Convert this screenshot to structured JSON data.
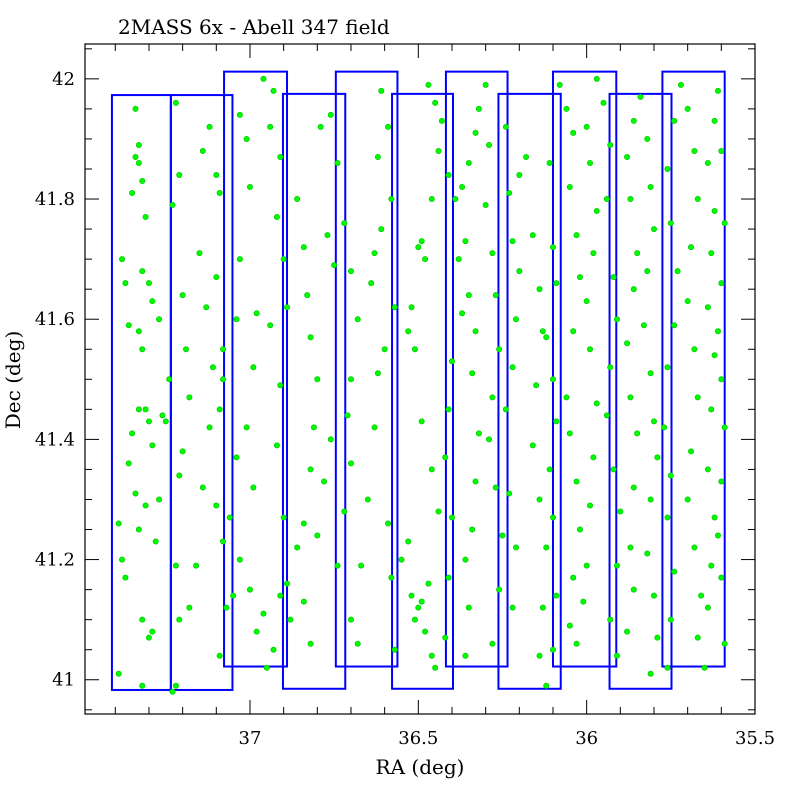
{
  "chart_data": {
    "type": "scatter",
    "title": "2MASS 6x - Abell 347 field",
    "xlabel": "RA (deg)",
    "ylabel": "Dec (deg)",
    "xlim": [
      37.49,
      35.5
    ],
    "ylim": [
      40.943,
      42.058
    ],
    "x_reversed": true,
    "grid": false,
    "x_ticks": [
      37,
      36.5,
      36,
      35.5
    ],
    "x_tick_labels": [
      "37",
      "36.5",
      "36",
      "35.5"
    ],
    "y_ticks": [
      41,
      41.2,
      41.4,
      41.6,
      41.8,
      42
    ],
    "y_tick_labels": [
      "41",
      "41.2",
      "41.4",
      "41.6",
      "41.8",
      "42"
    ],
    "colors": {
      "fields": "#0000ff",
      "sources": "#00ff00",
      "axes": "#000000"
    },
    "fields": [
      {
        "ra_min": 37.235,
        "ra_max": 37.41,
        "dec_min": 40.983,
        "dec_max": 41.973
      },
      {
        "ra_min": 37.052,
        "ra_max": 37.235,
        "dec_min": 40.983,
        "dec_max": 41.973
      },
      {
        "ra_min": 36.89,
        "ra_max": 37.077,
        "dec_min": 41.022,
        "dec_max": 42.012
      },
      {
        "ra_min": 36.717,
        "ra_max": 36.902,
        "dec_min": 40.985,
        "dec_max": 41.975
      },
      {
        "ra_min": 36.562,
        "ra_max": 36.745,
        "dec_min": 41.022,
        "dec_max": 42.012
      },
      {
        "ra_min": 36.397,
        "ra_max": 36.578,
        "dec_min": 40.985,
        "dec_max": 41.975
      },
      {
        "ra_min": 36.235,
        "ra_max": 36.418,
        "dec_min": 41.022,
        "dec_max": 42.012
      },
      {
        "ra_min": 36.077,
        "ra_max": 36.262,
        "dec_min": 40.985,
        "dec_max": 41.975
      },
      {
        "ra_min": 35.912,
        "ra_max": 36.1,
        "dec_min": 41.022,
        "dec_max": 42.012
      },
      {
        "ra_min": 35.748,
        "ra_max": 35.932,
        "dec_min": 40.985,
        "dec_max": 41.975
      },
      {
        "ra_min": 35.59,
        "ra_max": 35.775,
        "dec_min": 41.022,
        "dec_max": 42.012
      }
    ],
    "points": [
      [
        37.39,
        41.01
      ],
      [
        37.39,
        41.26
      ],
      [
        37.38,
        41.2
      ],
      [
        37.37,
        41.17
      ],
      [
        37.38,
        41.7
      ],
      [
        37.37,
        41.66
      ],
      [
        37.36,
        41.59
      ],
      [
        37.35,
        41.81
      ],
      [
        37.34,
        41.87
      ],
      [
        37.33,
        41.89
      ],
      [
        37.34,
        41.95
      ],
      [
        37.33,
        41.86
      ],
      [
        37.32,
        41.83
      ],
      [
        37.31,
        41.77
      ],
      [
        37.32,
        41.68
      ],
      [
        37.33,
        41.58
      ],
      [
        37.32,
        41.55
      ],
      [
        37.31,
        41.45
      ],
      [
        37.3,
        41.43
      ],
      [
        37.29,
        41.39
      ],
      [
        37.35,
        41.41
      ],
      [
        37.36,
        41.36
      ],
      [
        37.34,
        41.31
      ],
      [
        37.33,
        41.25
      ],
      [
        37.31,
        41.29
      ],
      [
        37.3,
        41.66
      ],
      [
        37.29,
        41.63
      ],
      [
        37.27,
        41.6
      ],
      [
        37.26,
        41.44
      ],
      [
        37.27,
        41.3
      ],
      [
        37.28,
        41.23
      ],
      [
        37.29,
        41.08
      ],
      [
        37.3,
        41.07
      ],
      [
        37.32,
        41.1
      ],
      [
        37.32,
        40.99
      ],
      [
        37.33,
        41.45
      ],
      [
        37.25,
        41.43
      ],
      [
        37.24,
        41.5
      ],
      [
        37.23,
        41.79
      ],
      [
        37.22,
        41.96
      ],
      [
        37.21,
        41.84
      ],
      [
        37.2,
        41.64
      ],
      [
        37.19,
        41.55
      ],
      [
        37.18,
        41.47
      ],
      [
        37.2,
        41.38
      ],
      [
        37.21,
        41.34
      ],
      [
        37.22,
        41.19
      ],
      [
        37.21,
        41.1
      ],
      [
        37.23,
        40.98
      ],
      [
        37.22,
        40.99
      ],
      [
        37.18,
        41.12
      ],
      [
        37.16,
        41.19
      ],
      [
        37.14,
        41.32
      ],
      [
        37.12,
        41.42
      ],
      [
        37.11,
        41.52
      ],
      [
        37.13,
        41.62
      ],
      [
        37.15,
        41.71
      ],
      [
        37.14,
        41.88
      ],
      [
        37.12,
        41.92
      ],
      [
        37.1,
        41.84
      ],
      [
        37.09,
        41.81
      ],
      [
        37.1,
        41.67
      ],
      [
        37.08,
        41.55
      ],
      [
        37.08,
        41.5
      ],
      [
        37.09,
        41.45
      ],
      [
        37.1,
        41.29
      ],
      [
        37.08,
        41.23
      ],
      [
        37.07,
        41.12
      ],
      [
        37.09,
        41.04
      ],
      [
        37.03,
        41.7
      ],
      [
        37.04,
        41.6
      ],
      [
        37.04,
        41.37
      ],
      [
        37.06,
        41.27
      ],
      [
        37.03,
        41.2
      ],
      [
        37.05,
        41.14
      ],
      [
        37.03,
        41.94
      ],
      [
        37.01,
        41.9
      ],
      [
        37,
        41.82
      ],
      [
        36.98,
        41.61
      ],
      [
        36.99,
        41.52
      ],
      [
        37.01,
        41.42
      ],
      [
        36.99,
        41.32
      ],
      [
        37,
        41.15
      ],
      [
        36.98,
        41.08
      ],
      [
        36.96,
        41.11
      ],
      [
        36.95,
        41.02
      ],
      [
        36.96,
        42.0
      ],
      [
        36.93,
        41.98
      ],
      [
        36.94,
        41.92
      ],
      [
        36.91,
        41.87
      ],
      [
        36.92,
        41.77
      ],
      [
        36.9,
        41.7
      ],
      [
        36.89,
        41.62
      ],
      [
        36.91,
        41.49
      ],
      [
        36.92,
        41.39
      ],
      [
        36.9,
        41.27
      ],
      [
        36.89,
        41.16
      ],
      [
        36.91,
        41.14
      ],
      [
        36.88,
        41.1
      ],
      [
        36.93,
        41.05
      ],
      [
        36.94,
        41.59
      ],
      [
        36.86,
        41.8
      ],
      [
        36.84,
        41.72
      ],
      [
        36.83,
        41.64
      ],
      [
        36.82,
        41.57
      ],
      [
        36.8,
        41.5
      ],
      [
        36.81,
        41.42
      ],
      [
        36.82,
        41.35
      ],
      [
        36.84,
        41.26
      ],
      [
        36.86,
        41.22
      ],
      [
        36.84,
        41.13
      ],
      [
        36.82,
        41.06
      ],
      [
        36.8,
        41.24
      ],
      [
        36.78,
        41.33
      ],
      [
        36.76,
        41.4
      ],
      [
        36.75,
        41.69
      ],
      [
        36.77,
        41.74
      ],
      [
        36.79,
        41.92
      ],
      [
        36.76,
        41.94
      ],
      [
        36.74,
        41.86
      ],
      [
        36.72,
        41.76
      ],
      [
        36.7,
        41.68
      ],
      [
        36.68,
        41.6
      ],
      [
        36.7,
        41.5
      ],
      [
        36.71,
        41.44
      ],
      [
        36.7,
        41.36
      ],
      [
        36.72,
        41.28
      ],
      [
        36.74,
        41.19
      ],
      [
        36.7,
        41.1
      ],
      [
        36.68,
        41.06
      ],
      [
        36.67,
        41.19
      ],
      [
        36.65,
        41.3
      ],
      [
        36.63,
        41.42
      ],
      [
        36.62,
        41.51
      ],
      [
        36.64,
        41.66
      ],
      [
        36.63,
        41.71
      ],
      [
        36.61,
        41.75
      ],
      [
        36.62,
        41.87
      ],
      [
        36.61,
        41.98
      ],
      [
        36.59,
        41.92
      ],
      [
        36.58,
        41.8
      ],
      [
        36.57,
        41.62
      ],
      [
        36.6,
        41.55
      ],
      [
        36.59,
        41.26
      ],
      [
        36.58,
        41.17
      ],
      [
        36.57,
        41.05
      ],
      [
        36.55,
        41.2
      ],
      [
        36.53,
        41.23
      ],
      [
        36.52,
        41.14
      ],
      [
        36.51,
        41.1
      ],
      [
        36.5,
        41.12
      ],
      [
        36.49,
        41.13
      ],
      [
        36.48,
        41.08
      ],
      [
        36.47,
        41.16
      ],
      [
        36.46,
        41.04
      ],
      [
        36.45,
        41.02
      ],
      [
        36.44,
        41.28
      ],
      [
        36.46,
        41.35
      ],
      [
        36.49,
        41.43
      ],
      [
        36.51,
        41.55
      ],
      [
        36.53,
        41.58
      ],
      [
        36.52,
        41.62
      ],
      [
        36.5,
        41.72
      ],
      [
        36.49,
        41.73
      ],
      [
        36.48,
        41.7
      ],
      [
        36.46,
        41.8
      ],
      [
        36.44,
        41.88
      ],
      [
        36.43,
        41.93
      ],
      [
        36.45,
        41.96
      ],
      [
        36.47,
        41.99
      ],
      [
        36.41,
        41.84
      ],
      [
        36.39,
        41.8
      ],
      [
        36.38,
        41.7
      ],
      [
        36.37,
        41.61
      ],
      [
        36.4,
        41.53
      ],
      [
        36.41,
        41.45
      ],
      [
        36.42,
        41.37
      ],
      [
        36.4,
        41.27
      ],
      [
        36.41,
        41.17
      ],
      [
        36.42,
        41.07
      ],
      [
        36.36,
        41.04
      ],
      [
        36.35,
        41.12
      ],
      [
        36.36,
        41.2
      ],
      [
        36.34,
        41.25
      ],
      [
        36.33,
        41.33
      ],
      [
        36.32,
        41.41
      ],
      [
        36.34,
        41.51
      ],
      [
        36.33,
        41.58
      ],
      [
        36.35,
        41.64
      ],
      [
        36.36,
        41.73
      ],
      [
        36.37,
        41.82
      ],
      [
        36.35,
        41.86
      ],
      [
        36.33,
        41.91
      ],
      [
        36.32,
        41.95
      ],
      [
        36.3,
        41.99
      ],
      [
        36.29,
        41.89
      ],
      [
        36.3,
        41.79
      ],
      [
        36.28,
        41.71
      ],
      [
        36.27,
        41.64
      ],
      [
        36.26,
        41.55
      ],
      [
        36.28,
        41.47
      ],
      [
        36.29,
        41.4
      ],
      [
        36.27,
        41.32
      ],
      [
        36.25,
        41.24
      ],
      [
        36.26,
        41.15
      ],
      [
        36.28,
        41.06
      ],
      [
        36.22,
        41.12
      ],
      [
        36.21,
        41.22
      ],
      [
        36.23,
        41.31
      ],
      [
        36.24,
        41.45
      ],
      [
        36.22,
        41.52
      ],
      [
        36.21,
        41.6
      ],
      [
        36.2,
        41.68
      ],
      [
        36.22,
        41.73
      ],
      [
        36.23,
        41.81
      ],
      [
        36.24,
        41.92
      ],
      [
        36.2,
        41.84
      ],
      [
        36.18,
        41.87
      ],
      [
        36.16,
        41.74
      ],
      [
        36.14,
        41.65
      ],
      [
        36.13,
        41.58
      ],
      [
        36.15,
        41.49
      ],
      [
        36.16,
        41.39
      ],
      [
        36.14,
        41.3
      ],
      [
        36.12,
        41.22
      ],
      [
        36.13,
        41.12
      ],
      [
        36.14,
        41.04
      ],
      [
        36.12,
        40.99
      ],
      [
        36.1,
        41.05
      ],
      [
        36.09,
        41.14
      ],
      [
        36.1,
        41.27
      ],
      [
        36.11,
        41.35
      ],
      [
        36.09,
        41.43
      ],
      [
        36.1,
        41.5
      ],
      [
        36.12,
        41.57
      ],
      [
        36.09,
        41.66
      ],
      [
        36.1,
        41.72
      ],
      [
        36.11,
        41.86
      ],
      [
        36.08,
        41.99
      ],
      [
        36.06,
        41.95
      ],
      [
        36.04,
        41.91
      ],
      [
        36.05,
        41.82
      ],
      [
        36.03,
        41.74
      ],
      [
        36.02,
        41.67
      ],
      [
        36.04,
        41.58
      ],
      [
        36.06,
        41.47
      ],
      [
        36.05,
        41.41
      ],
      [
        36.03,
        41.33
      ],
      [
        36.02,
        41.25
      ],
      [
        36.04,
        41.17
      ],
      [
        36.05,
        41.09
      ],
      [
        36.03,
        41.06
      ],
      [
        36.01,
        41.13
      ],
      [
        36,
        41.19
      ],
      [
        35.99,
        41.29
      ],
      [
        35.98,
        41.37
      ],
      [
        35.97,
        41.46
      ],
      [
        35.99,
        41.55
      ],
      [
        36,
        41.63
      ],
      [
        35.98,
        41.71
      ],
      [
        35.97,
        41.78
      ],
      [
        35.99,
        41.86
      ],
      [
        36,
        41.92
      ],
      [
        35.97,
        42.0
      ],
      [
        35.95,
        41.96
      ],
      [
        35.93,
        41.89
      ],
      [
        35.94,
        41.8
      ],
      [
        35.92,
        41.67
      ],
      [
        35.91,
        41.6
      ],
      [
        35.93,
        41.52
      ],
      [
        35.94,
        41.44
      ],
      [
        35.92,
        41.35
      ],
      [
        35.9,
        41.28
      ],
      [
        35.91,
        41.19
      ],
      [
        35.93,
        41.1
      ],
      [
        35.91,
        41.04
      ],
      [
        35.88,
        41.08
      ],
      [
        35.86,
        41.15
      ],
      [
        35.87,
        41.22
      ],
      [
        35.86,
        41.32
      ],
      [
        35.85,
        41.41
      ],
      [
        35.87,
        41.47
      ],
      [
        35.88,
        41.56
      ],
      [
        35.86,
        41.65
      ],
      [
        35.85,
        41.71
      ],
      [
        35.87,
        41.8
      ],
      [
        35.88,
        41.87
      ],
      [
        35.86,
        41.93
      ],
      [
        35.84,
        41.97
      ],
      [
        35.82,
        41.9
      ],
      [
        35.81,
        41.82
      ],
      [
        35.8,
        41.75
      ],
      [
        35.82,
        41.68
      ],
      [
        35.83,
        41.59
      ],
      [
        35.81,
        41.51
      ],
      [
        35.8,
        41.43
      ],
      [
        35.79,
        41.37
      ],
      [
        35.81,
        41.3
      ],
      [
        35.82,
        41.21
      ],
      [
        35.8,
        41.14
      ],
      [
        35.79,
        41.07
      ],
      [
        35.81,
        41.01
      ],
      [
        35.76,
        41.02
      ],
      [
        35.75,
        41.1
      ],
      [
        35.74,
        41.18
      ],
      [
        35.76,
        41.27
      ],
      [
        35.75,
        41.34
      ],
      [
        35.77,
        41.42
      ],
      [
        35.76,
        41.52
      ],
      [
        35.74,
        41.59
      ],
      [
        35.73,
        41.68
      ],
      [
        35.75,
        41.76
      ],
      [
        35.76,
        41.85
      ],
      [
        35.74,
        41.93
      ],
      [
        35.72,
        41.99
      ],
      [
        35.7,
        41.95
      ],
      [
        35.68,
        41.88
      ],
      [
        35.67,
        41.8
      ],
      [
        35.69,
        41.72
      ],
      [
        35.7,
        41.63
      ],
      [
        35.68,
        41.55
      ],
      [
        35.67,
        41.47
      ],
      [
        35.69,
        41.38
      ],
      [
        35.7,
        41.3
      ],
      [
        35.68,
        41.22
      ],
      [
        35.66,
        41.14
      ],
      [
        35.67,
        41.07
      ],
      [
        35.65,
        41.02
      ],
      [
        35.64,
        41.12
      ],
      [
        35.63,
        41.19
      ],
      [
        35.62,
        41.27
      ],
      [
        35.64,
        41.35
      ],
      [
        35.63,
        41.45
      ],
      [
        35.62,
        41.54
      ],
      [
        35.64,
        41.62
      ],
      [
        35.63,
        41.71
      ],
      [
        35.62,
        41.78
      ],
      [
        35.64,
        41.86
      ],
      [
        35.62,
        41.93
      ],
      [
        35.61,
        41.98
      ],
      [
        35.6,
        41.88
      ],
      [
        35.59,
        41.76
      ],
      [
        35.6,
        41.66
      ],
      [
        35.61,
        41.58
      ],
      [
        35.6,
        41.5
      ],
      [
        35.59,
        41.42
      ],
      [
        35.6,
        41.33
      ],
      [
        35.61,
        41.24
      ],
      [
        35.6,
        41.17
      ],
      [
        35.59,
        41.06
      ]
    ]
  }
}
